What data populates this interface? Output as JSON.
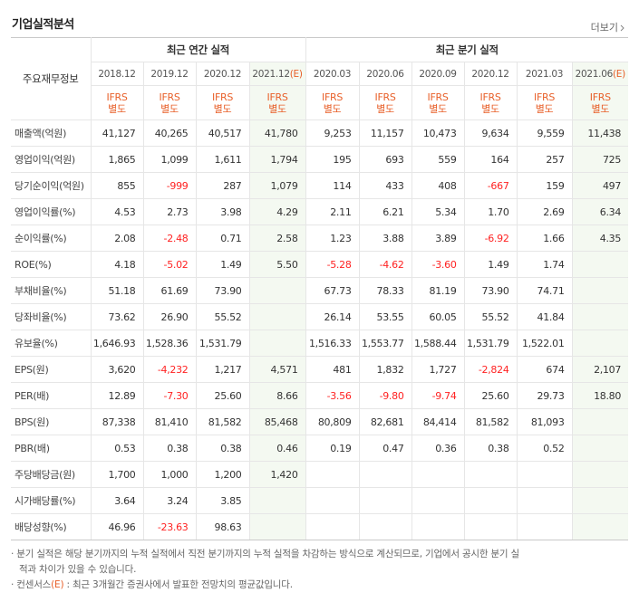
{
  "header": {
    "title": "기업실적분석",
    "more": "더보기"
  },
  "table": {
    "corner": "주요재무정보",
    "annual_title": "최근 연간 실적",
    "quarter_title": "최근 분기 실적",
    "annual_count": 4,
    "columns": [
      {
        "period": "2018.12",
        "basis": [
          "IFRS",
          "별도"
        ]
      },
      {
        "period": "2019.12",
        "basis": [
          "IFRS",
          "별도"
        ]
      },
      {
        "period": "2020.12",
        "basis": [
          "IFRS",
          "별도"
        ]
      },
      {
        "period": "2021.12",
        "estimate": "(E)",
        "basis": [
          "IFRS",
          "별도"
        ]
      },
      {
        "period": "2020.03",
        "basis": [
          "IFRS",
          "별도"
        ]
      },
      {
        "period": "2020.06",
        "basis": [
          "IFRS",
          "별도"
        ]
      },
      {
        "period": "2020.09",
        "basis": [
          "IFRS",
          "별도"
        ]
      },
      {
        "period": "2020.12",
        "basis": [
          "IFRS",
          "별도"
        ]
      },
      {
        "period": "2021.03",
        "basis": [
          "IFRS",
          "별도"
        ]
      },
      {
        "period": "2021.06",
        "estimate": "(E)",
        "basis": [
          "IFRS",
          "별도"
        ]
      }
    ],
    "groups": [
      {
        "rows": [
          {
            "label": "매출액(억원)",
            "values": [
              "41,127",
              "40,265",
              "40,517",
              "41,780",
              "9,253",
              "11,157",
              "10,473",
              "9,634",
              "9,559",
              "11,438"
            ]
          },
          {
            "label": "영업이익(억원)",
            "values": [
              "1,865",
              "1,099",
              "1,611",
              "1,794",
              "195",
              "693",
              "559",
              "164",
              "257",
              "725"
            ]
          },
          {
            "label": "당기순이익(억원)",
            "values": [
              "855",
              "-999",
              "287",
              "1,079",
              "114",
              "433",
              "408",
              "-667",
              "159",
              "497"
            ]
          }
        ]
      },
      {
        "rows": [
          {
            "label": "영업이익률(%)",
            "values": [
              "4.53",
              "2.73",
              "3.98",
              "4.29",
              "2.11",
              "6.21",
              "5.34",
              "1.70",
              "2.69",
              "6.34"
            ]
          },
          {
            "label": "순이익률(%)",
            "values": [
              "2.08",
              "-2.48",
              "0.71",
              "2.58",
              "1.23",
              "3.88",
              "3.89",
              "-6.92",
              "1.66",
              "4.35"
            ]
          },
          {
            "label": "ROE(%)",
            "values": [
              "4.18",
              "-5.02",
              "1.49",
              "5.50",
              "-5.28",
              "-4.62",
              "-3.60",
              "1.49",
              "1.74",
              null
            ]
          }
        ]
      },
      {
        "rows": [
          {
            "label": "부채비율(%)",
            "values": [
              "51.18",
              "61.69",
              "73.90",
              null,
              "67.73",
              "78.33",
              "81.19",
              "73.90",
              "74.71",
              null
            ]
          },
          {
            "label": "당좌비율(%)",
            "values": [
              "73.62",
              "26.90",
              "55.52",
              null,
              "26.14",
              "53.55",
              "60.05",
              "55.52",
              "41.84",
              null
            ]
          },
          {
            "label": "유보율(%)",
            "values": [
              "1,646.93",
              "1,528.36",
              "1,531.79",
              null,
              "1,516.33",
              "1,553.77",
              "1,588.44",
              "1,531.79",
              "1,522.01",
              null
            ]
          }
        ]
      },
      {
        "rows": [
          {
            "label": "EPS(원)",
            "values": [
              "3,620",
              "-4,232",
              "1,217",
              "4,571",
              "481",
              "1,832",
              "1,727",
              "-2,824",
              "674",
              "2,107"
            ]
          },
          {
            "label": "PER(배)",
            "values": [
              "12.89",
              "-7.30",
              "25.60",
              "8.66",
              "-3.56",
              "-9.80",
              "-9.74",
              "25.60",
              "29.73",
              "18.80"
            ]
          },
          {
            "label": "BPS(원)",
            "values": [
              "87,338",
              "81,410",
              "81,582",
              "85,468",
              "80,809",
              "82,681",
              "84,414",
              "81,582",
              "81,093",
              null
            ]
          },
          {
            "label": "PBR(배)",
            "values": [
              "0.53",
              "0.38",
              "0.38",
              "0.46",
              "0.19",
              "0.47",
              "0.36",
              "0.38",
              "0.52",
              null
            ]
          }
        ]
      },
      {
        "rows": [
          {
            "label": "주당배당금(원)",
            "values": [
              "1,700",
              "1,000",
              "1,200",
              "1,420",
              null,
              null,
              null,
              null,
              null,
              null
            ]
          },
          {
            "label": "시가배당률(%)",
            "values": [
              "3.64",
              "3.24",
              "3.85",
              null,
              null,
              null,
              null,
              null,
              null,
              null
            ]
          },
          {
            "label": "배당성향(%)",
            "values": [
              "46.96",
              "-23.63",
              "98.63",
              null,
              null,
              null,
              null,
              null,
              null,
              null
            ]
          }
        ]
      }
    ]
  },
  "notes": [
    {
      "text": "· 분기 실적은 해당 분기까지의 누적 실적에서 직전 분기까지의 누적 실적을 차감하는 방식으로 계산되므로, 기업에서 공시한 분기 실적과 차이가 있을 수 있습니다."
    },
    {
      "text": "· 컨센서스",
      "mark": "(E)",
      "rest": " : 최근 3개월간 증권사에서 발표한 전망치의 평균값입니다."
    }
  ]
}
